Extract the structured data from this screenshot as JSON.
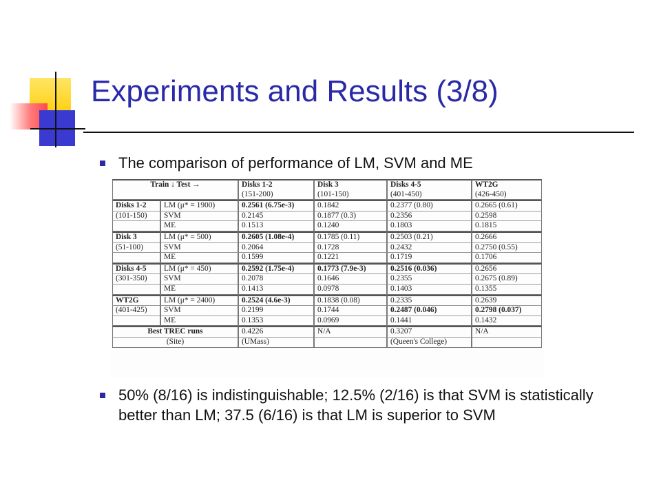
{
  "slide": {
    "title": "Experiments and Results (3/8)",
    "bullets": [
      "The comparison of performance of LM, SVM and ME",
      "50% (8/16) is indistinguishable; 12.5% (2/16) is that SVM is statistically better than LM; 37.5 (6/16) is that LM is superior to SVM"
    ],
    "accent_color": "#2a2aa8"
  },
  "table": {
    "header": {
      "corner": "Train ↓ Test →",
      "columns": [
        {
          "name": "Disks 1-2",
          "range": "(151-200)"
        },
        {
          "name": "Disk 3",
          "range": "(101-150)"
        },
        {
          "name": "Disks 4-5",
          "range": "(401-450)"
        },
        {
          "name": "WT2G",
          "range": "(426-450)"
        }
      ]
    },
    "groups": [
      {
        "name": "Disks 1-2",
        "range": "(101-150)",
        "rows": [
          {
            "method": "LM (μ* = 1900)",
            "values": [
              "0.2561 (6.75e-3)",
              "0.1842",
              "0.2377 (0.80)",
              "0.2665 (0.61)"
            ],
            "bold": [
              true,
              false,
              false,
              false
            ]
          },
          {
            "method": "SVM",
            "values": [
              "0.2145",
              "0.1877 (0.3)",
              "0.2356",
              "0.2598"
            ],
            "bold": [
              false,
              false,
              false,
              false
            ]
          },
          {
            "method": "ME",
            "values": [
              "0.1513",
              "0.1240",
              "0.1803",
              "0.1815"
            ],
            "bold": [
              false,
              false,
              false,
              false
            ]
          }
        ]
      },
      {
        "name": "Disk 3",
        "range": "(51-100)",
        "rows": [
          {
            "method": "LM (μ* = 500)",
            "values": [
              "0.2605 (1.08e-4)",
              "0.1785 (0.11)",
              "0.2503 (0.21)",
              "0.2666"
            ],
            "bold": [
              true,
              false,
              false,
              false
            ]
          },
          {
            "method": "SVM",
            "values": [
              "0.2064",
              "0.1728",
              "0.2432",
              "0.2750 (0.55)"
            ],
            "bold": [
              false,
              false,
              false,
              false
            ]
          },
          {
            "method": "ME",
            "values": [
              "0.1599",
              "0.1221",
              "0.1719",
              "0.1706"
            ],
            "bold": [
              false,
              false,
              false,
              false
            ]
          }
        ]
      },
      {
        "name": "Disks 4-5",
        "range": "(301-350)",
        "rows": [
          {
            "method": "LM (μ* = 450)",
            "values": [
              "0.2592 (1.75e-4)",
              "0.1773 (7.9e-3)",
              "0.2516 (0.036)",
              "0.2656"
            ],
            "bold": [
              true,
              true,
              true,
              false
            ]
          },
          {
            "method": "SVM",
            "values": [
              "0.2078",
              "0.1646",
              "0.2355",
              "0.2675 (0.89)"
            ],
            "bold": [
              false,
              false,
              false,
              false
            ]
          },
          {
            "method": "ME",
            "values": [
              "0.1413",
              "0.0978",
              "0.1403",
              "0.1355"
            ],
            "bold": [
              false,
              false,
              false,
              false
            ]
          }
        ]
      },
      {
        "name": "WT2G",
        "range": "(401-425)",
        "rows": [
          {
            "method": "LM (μ* = 2400)",
            "values": [
              "0.2524 (4.6e-3)",
              "0.1838 (0.08)",
              "0.2335",
              "0.2639"
            ],
            "bold": [
              true,
              false,
              false,
              false
            ]
          },
          {
            "method": "SVM",
            "values": [
              "0.2199",
              "0.1744",
              "0.2487 (0.046)",
              "0.2798 (0.037)"
            ],
            "bold": [
              false,
              false,
              true,
              true
            ]
          },
          {
            "method": "ME",
            "values": [
              "0.1353",
              "0.0969",
              "0.1441",
              "0.1432"
            ],
            "bold": [
              false,
              false,
              false,
              false
            ]
          }
        ]
      }
    ],
    "best": {
      "label": "Best TREC runs",
      "sublabel": "(Site)",
      "values": [
        {
          "value": "0.4226",
          "site": "(UMass)"
        },
        {
          "value": "N/A",
          "site": ""
        },
        {
          "value": "0.3207",
          "site": "(Queen's College)"
        },
        {
          "value": "N/A",
          "site": ""
        }
      ]
    }
  }
}
